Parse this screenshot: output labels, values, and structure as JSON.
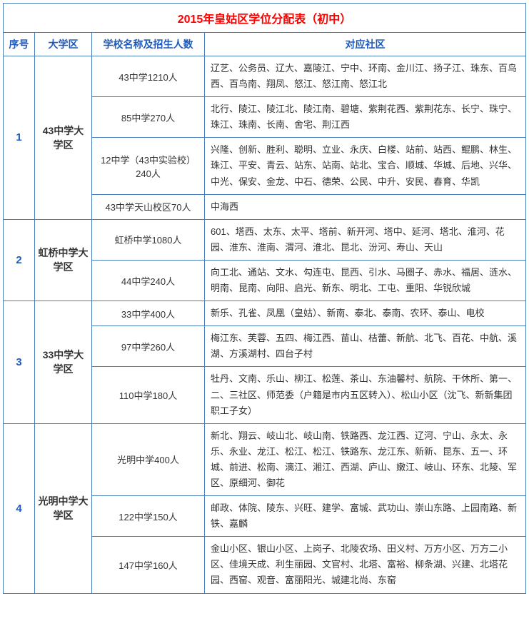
{
  "title": "2015年皇姑区学位分配表（初中）",
  "headers": {
    "seq": "序号",
    "district": "大学区",
    "school": "学校名称及招生人数",
    "community": "对应社区"
  },
  "groups": [
    {
      "seq": "1",
      "district": "43中学大学区",
      "rows": [
        {
          "school": "43中学1210人",
          "community": "辽艺、公务员、辽大、嘉陵江、宁中、环南、金川江、扬子江、珠东、百鸟西、百鸟南、翔凤、怒江、怒江南、怒江北"
        },
        {
          "school": "85中学270人",
          "community": "北行、陵江、陵江北、陵江南、碧塘、紫荆花西、紫荆花东、长宁、珠宁、珠江、珠南、长南、舍宅、荆江西"
        },
        {
          "school": "12中学（43中实验校）240人",
          "community": "兴隆、创新、胜利、聪明、立业、永庆、白楼、站前、站西、鲲鹏、林生、珠江、平安、青云、站东、站南、站北、宝合、顺城、华城、后地、兴华、中光、保安、金龙、中石、德荣、公民、中升、安民、春育、华凯"
        },
        {
          "school": "43中学天山校区70人",
          "community": "中海西"
        }
      ]
    },
    {
      "seq": "2",
      "district": "虹桥中学大学区",
      "rows": [
        {
          "school": "虹桥中学1080人",
          "community": "601、塔西、太东、太平、塔前、新开河、塔中、延河、塔北、淮河、花园、淮东、淮南、渭河、淮北、昆北、汾河、寿山、天山"
        },
        {
          "school": "44中学240人",
          "community": "向工北、通站、文水、勾连屯、昆西、引水、马圈子、赤水、福居、涟水、明南、昆南、向阳、启光、新东、明北、工屯、重阳、华锐欣城"
        }
      ]
    },
    {
      "seq": "3",
      "district": "33中学大学区",
      "rows": [
        {
          "school": "33中学400人",
          "community": "新乐、孔雀、凤凰（皇姑）、新南、泰北、泰南、农环、泰山、电校"
        },
        {
          "school": "97中学260人",
          "community": "梅江东、芙蓉、五四、梅江西、苗山、桔蕾、新航、北飞、百花、中航、溪湖、方溪湖村、四台子村"
        },
        {
          "school": "110中学180人",
          "community": "牡丹、文南、乐山、柳江、松莲、茶山、东油馨村、航院、干休所、第一、二、三社区、师范委（户籍是市内五区转入）、松山小区（沈飞、新新集团职工子女）"
        }
      ]
    },
    {
      "seq": "4",
      "district": "光明中学大学区",
      "rows": [
        {
          "school": "光明中学400人",
          "community": "新北、翔云、岐山北、岐山南、铁路西、龙江西、辽河、宁山、永太、永乐、永业、龙江、松江、松江、铁路东、龙江东、新新、昆东、五一、环城、前进、松南、漓江、湘江、西湖、庐山、嫩江、岐山、环东、北陵、军区、原细河、御花"
        },
        {
          "school": "122中学150人",
          "community": "邮政、体院、陵东、兴旺、建学、富城、武功山、崇山东路、上园南路、新铁、嘉麟"
        },
        {
          "school": "147中学160人",
          "community": "金山小区、银山小区、上岗子、北陵农场、田义村、万方小区、万方二小区、佳境天成、利生丽园、文官村、北塔、富裕、柳条湖、兴建、北塔花园、西窑、观音、富丽阳光、城建北尚、东窑"
        }
      ]
    }
  ]
}
